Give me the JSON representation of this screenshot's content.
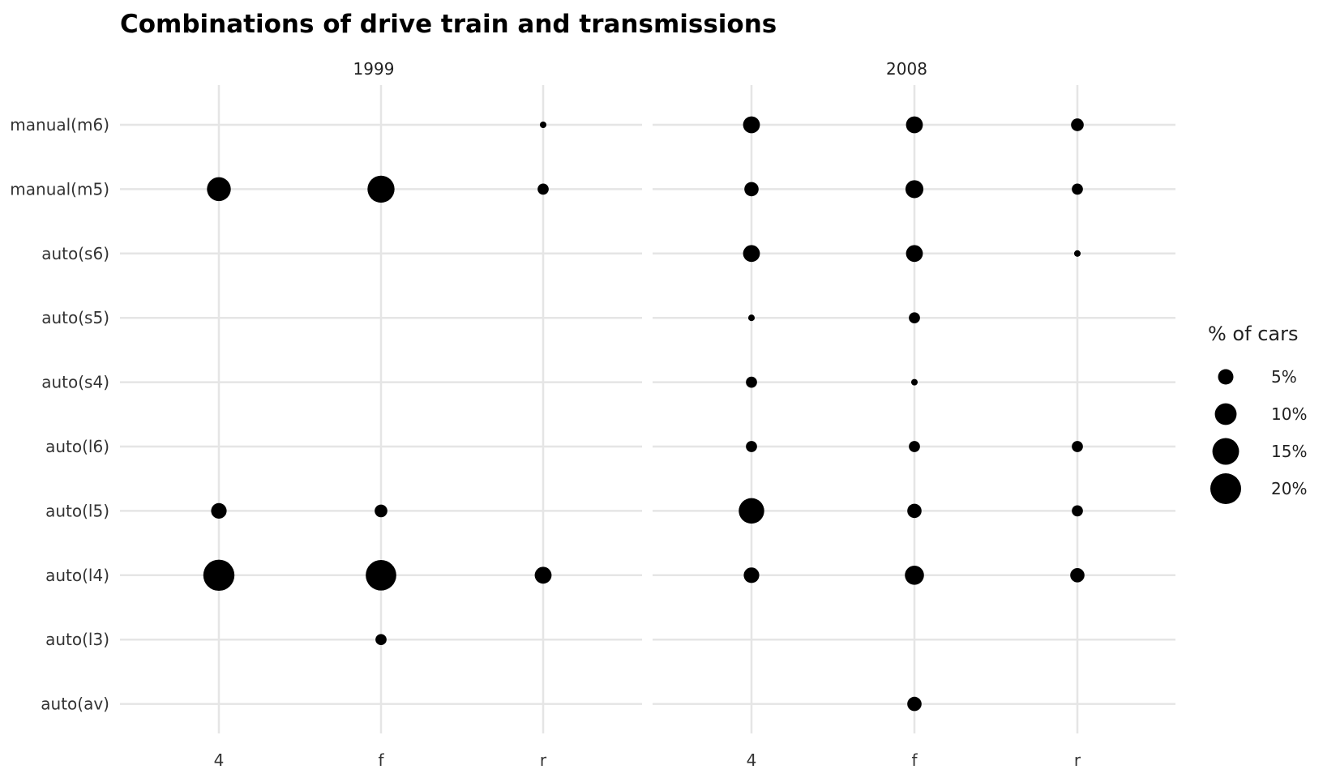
{
  "chart_data": {
    "type": "scatter",
    "title": "Combinations of drive train and transmissions",
    "facets": [
      "1999",
      "2008"
    ],
    "x_categories": [
      "4",
      "f",
      "r"
    ],
    "y_categories": [
      "manual(m6)",
      "manual(m5)",
      "auto(s6)",
      "auto(s5)",
      "auto(s4)",
      "auto(l6)",
      "auto(l5)",
      "auto(l4)",
      "auto(l3)",
      "auto(av)"
    ],
    "size_legend": {
      "title": "% of cars",
      "entries": [
        {
          "label": "5%",
          "value": 5
        },
        {
          "label": "10%",
          "value": 10
        },
        {
          "label": "15%",
          "value": 15
        },
        {
          "label": "20%",
          "value": 20
        }
      ]
    },
    "grid": true,
    "legend_position": "right",
    "points": [
      {
        "facet": "1999",
        "x": "r",
        "y": "manual(m6)",
        "pct": 0.9
      },
      {
        "facet": "1999",
        "x": "4",
        "y": "manual(m5)",
        "pct": 12.0
      },
      {
        "facet": "1999",
        "x": "f",
        "y": "manual(m5)",
        "pct": 15.4
      },
      {
        "facet": "1999",
        "x": "r",
        "y": "manual(m5)",
        "pct": 2.6
      },
      {
        "facet": "1999",
        "x": "4",
        "y": "auto(l5)",
        "pct": 5.1
      },
      {
        "facet": "1999",
        "x": "f",
        "y": "auto(l5)",
        "pct": 3.4
      },
      {
        "facet": "1999",
        "x": "4",
        "y": "auto(l4)",
        "pct": 20.5
      },
      {
        "facet": "1999",
        "x": "f",
        "y": "auto(l4)",
        "pct": 19.7
      },
      {
        "facet": "1999",
        "x": "r",
        "y": "auto(l4)",
        "pct": 6.0
      },
      {
        "facet": "1999",
        "x": "f",
        "y": "auto(l3)",
        "pct": 2.6
      },
      {
        "facet": "2008",
        "x": "4",
        "y": "manual(m6)",
        "pct": 6.0
      },
      {
        "facet": "2008",
        "x": "f",
        "y": "manual(m6)",
        "pct": 6.0
      },
      {
        "facet": "2008",
        "x": "r",
        "y": "manual(m6)",
        "pct": 3.4
      },
      {
        "facet": "2008",
        "x": "4",
        "y": "manual(m5)",
        "pct": 4.3
      },
      {
        "facet": "2008",
        "x": "f",
        "y": "manual(m5)",
        "pct": 6.8
      },
      {
        "facet": "2008",
        "x": "r",
        "y": "manual(m5)",
        "pct": 2.6
      },
      {
        "facet": "2008",
        "x": "4",
        "y": "auto(s6)",
        "pct": 6.0
      },
      {
        "facet": "2008",
        "x": "f",
        "y": "auto(s6)",
        "pct": 6.0
      },
      {
        "facet": "2008",
        "x": "r",
        "y": "auto(s6)",
        "pct": 0.9
      },
      {
        "facet": "2008",
        "x": "4",
        "y": "auto(s5)",
        "pct": 0.9
      },
      {
        "facet": "2008",
        "x": "f",
        "y": "auto(s5)",
        "pct": 2.6
      },
      {
        "facet": "2008",
        "x": "4",
        "y": "auto(s4)",
        "pct": 2.6
      },
      {
        "facet": "2008",
        "x": "f",
        "y": "auto(s4)",
        "pct": 0.9
      },
      {
        "facet": "2008",
        "x": "4",
        "y": "auto(l6)",
        "pct": 2.6
      },
      {
        "facet": "2008",
        "x": "f",
        "y": "auto(l6)",
        "pct": 2.6
      },
      {
        "facet": "2008",
        "x": "r",
        "y": "auto(l6)",
        "pct": 2.6
      },
      {
        "facet": "2008",
        "x": "4",
        "y": "auto(l5)",
        "pct": 13.7
      },
      {
        "facet": "2008",
        "x": "f",
        "y": "auto(l5)",
        "pct": 4.3
      },
      {
        "facet": "2008",
        "x": "r",
        "y": "auto(l5)",
        "pct": 2.6
      },
      {
        "facet": "2008",
        "x": "4",
        "y": "auto(l4)",
        "pct": 5.1
      },
      {
        "facet": "2008",
        "x": "f",
        "y": "auto(l4)",
        "pct": 7.7
      },
      {
        "facet": "2008",
        "x": "r",
        "y": "auto(l4)",
        "pct": 4.3
      },
      {
        "facet": "2008",
        "x": "f",
        "y": "auto(av)",
        "pct": 4.3
      }
    ]
  },
  "colors": {
    "point": "#000000",
    "grid": "#e5e5e5",
    "background": "#ffffff"
  }
}
